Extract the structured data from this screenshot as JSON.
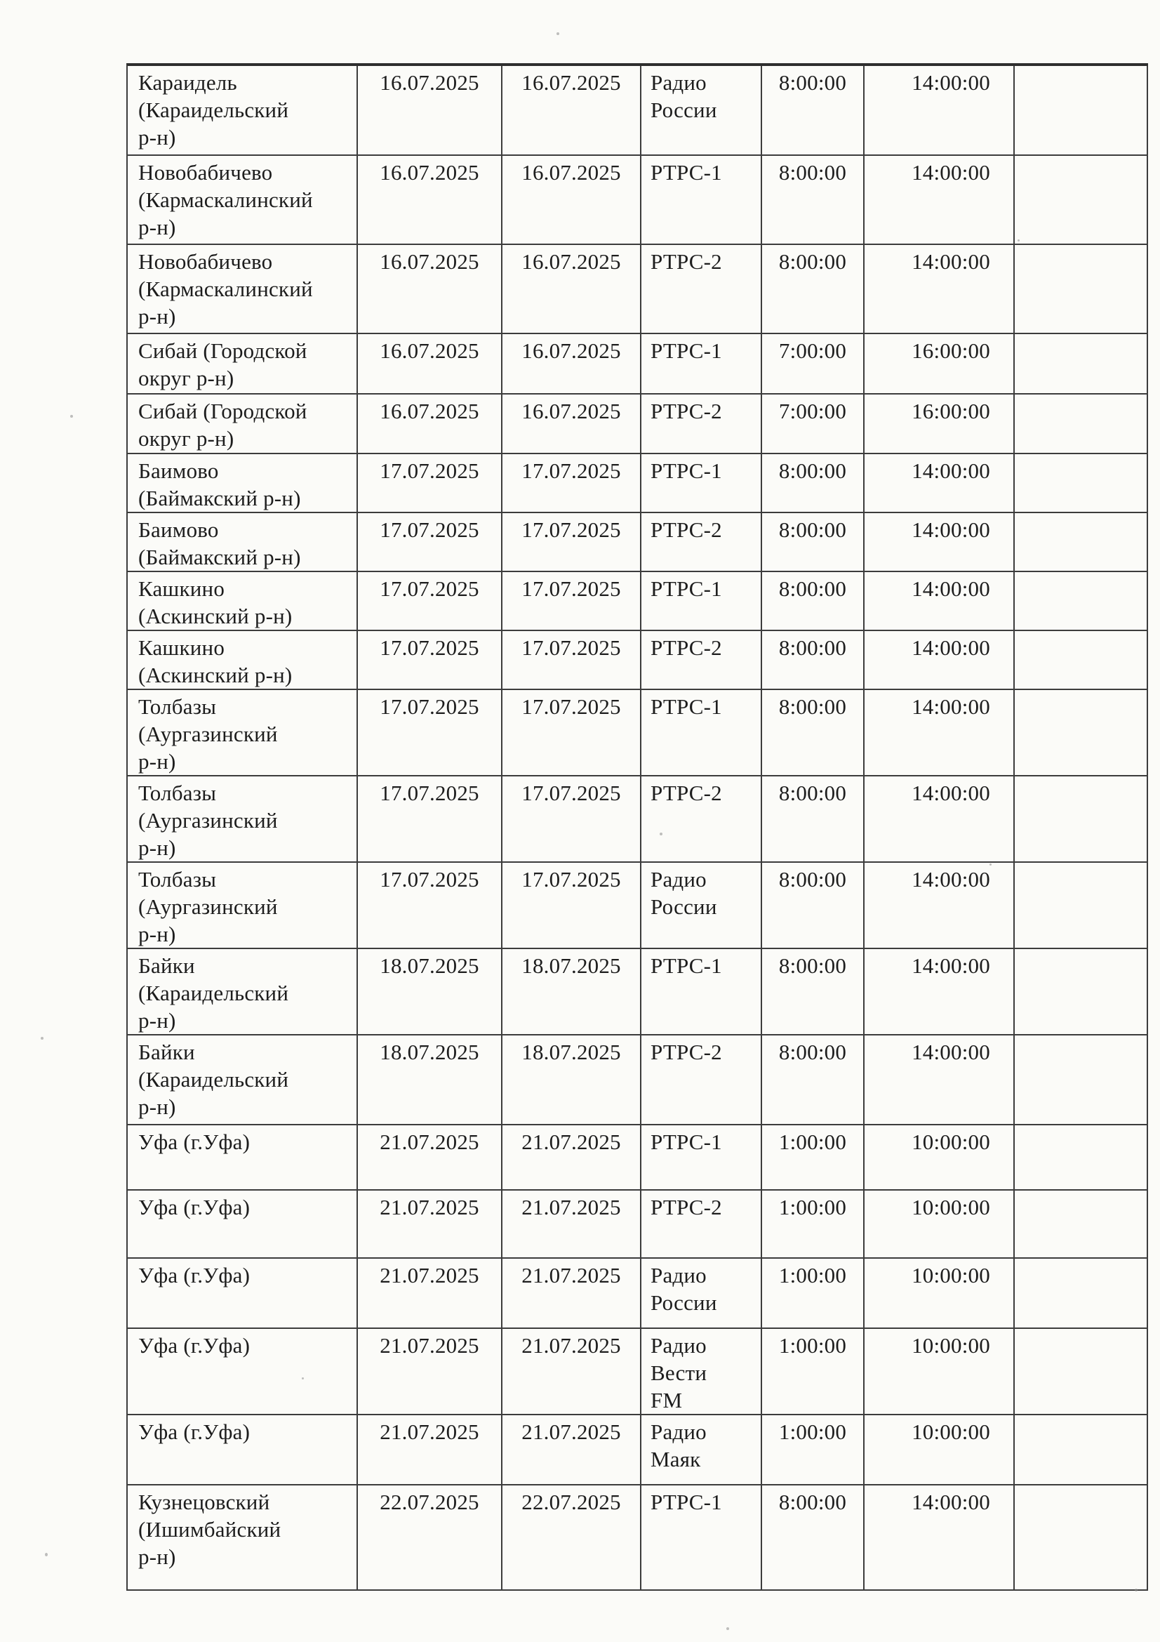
{
  "table": {
    "rows": [
      {
        "location": "Караидель\n(Караидельский\nр-н)",
        "date_from": "16.07.2025",
        "date_to": "16.07.2025",
        "channel": "Радио\nРоссии",
        "start_time": "8:00:00",
        "end_time": "14:00:00",
        "note": ""
      },
      {
        "location": "Новобабичево\n(Кармаскалинский\nр-н)",
        "date_from": "16.07.2025",
        "date_to": "16.07.2025",
        "channel": "РТРС-1",
        "start_time": "8:00:00",
        "end_time": "14:00:00",
        "note": ""
      },
      {
        "location": "Новобабичево\n(Кармаскалинский\nр-н)",
        "date_from": "16.07.2025",
        "date_to": "16.07.2025",
        "channel": "РТРС-2",
        "start_time": "8:00:00",
        "end_time": "14:00:00",
        "note": ""
      },
      {
        "location": "Сибай  (Городской\nокруг р-н)",
        "date_from": "16.07.2025",
        "date_to": "16.07.2025",
        "channel": "РТРС-1",
        "start_time": "7:00:00",
        "end_time": "16:00:00",
        "note": ""
      },
      {
        "location": "Сибай  (Городской\nокруг р-н)",
        "date_from": "16.07.2025",
        "date_to": "16.07.2025",
        "channel": "РТРС-2",
        "start_time": "7:00:00",
        "end_time": "16:00:00",
        "note": ""
      },
      {
        "location": "Баимово\n(Баймакский р-н)",
        "date_from": "17.07.2025",
        "date_to": "17.07.2025",
        "channel": "РТРС-1",
        "start_time": "8:00:00",
        "end_time": "14:00:00",
        "note": ""
      },
      {
        "location": "Баимово\n(Баймакский р-н)",
        "date_from": "17.07.2025",
        "date_to": "17.07.2025",
        "channel": "РТРС-2",
        "start_time": "8:00:00",
        "end_time": "14:00:00",
        "note": ""
      },
      {
        "location": "Кашкино\n(Аскинский р-н)",
        "date_from": "17.07.2025",
        "date_to": "17.07.2025",
        "channel": "РТРС-1",
        "start_time": "8:00:00",
        "end_time": "14:00:00",
        "note": ""
      },
      {
        "location": "Кашкино\n(Аскинский р-н)",
        "date_from": "17.07.2025",
        "date_to": "17.07.2025",
        "channel": "РТРС-2",
        "start_time": "8:00:00",
        "end_time": "14:00:00",
        "note": ""
      },
      {
        "location": "Толбазы\n(Аургазинский\nр-н)",
        "date_from": "17.07.2025",
        "date_to": "17.07.2025",
        "channel": "РТРС-1",
        "start_time": "8:00:00",
        "end_time": "14:00:00",
        "note": ""
      },
      {
        "location": "Толбазы\n(Аургазинский\nр-н)",
        "date_from": "17.07.2025",
        "date_to": "17.07.2025",
        "channel": "РТРС-2",
        "start_time": "8:00:00",
        "end_time": "14:00:00",
        "note": ""
      },
      {
        "location": "Толбазы\n(Аургазинский\nр-н)",
        "date_from": "17.07.2025",
        "date_to": "17.07.2025",
        "channel": "Радио\nРоссии",
        "start_time": "8:00:00",
        "end_time": "14:00:00",
        "note": ""
      },
      {
        "location": "Байки\n(Караидельский\nр-н)",
        "date_from": "18.07.2025",
        "date_to": "18.07.2025",
        "channel": "РТРС-1",
        "start_time": "8:00:00",
        "end_time": "14:00:00",
        "note": ""
      },
      {
        "location": "Байки\n(Караидельский\nр-н)",
        "date_from": "18.07.2025",
        "date_to": "18.07.2025",
        "channel": "РТРС-2",
        "start_time": "8:00:00",
        "end_time": "14:00:00",
        "note": ""
      },
      {
        "location": "Уфа (г.Уфа)",
        "date_from": "21.07.2025",
        "date_to": "21.07.2025",
        "channel": "РТРС-1",
        "start_time": "1:00:00",
        "end_time": "10:00:00",
        "note": ""
      },
      {
        "location": "Уфа (г.Уфа)",
        "date_from": "21.07.2025",
        "date_to": "21.07.2025",
        "channel": "РТРС-2",
        "start_time": "1:00:00",
        "end_time": "10:00:00",
        "note": ""
      },
      {
        "location": "Уфа (г.Уфа)",
        "date_from": "21.07.2025",
        "date_to": "21.07.2025",
        "channel": "Радио\nРоссии",
        "start_time": "1:00:00",
        "end_time": "10:00:00",
        "note": ""
      },
      {
        "location": "Уфа (г.Уфа)",
        "date_from": "21.07.2025",
        "date_to": "21.07.2025",
        "channel": "Радио\nВести\nFM",
        "start_time": "1:00:00",
        "end_time": "10:00:00",
        "note": ""
      },
      {
        "location": "Уфа (г.Уфа)",
        "date_from": "21.07.2025",
        "date_to": "21.07.2025",
        "channel": "Радио\nМаяк",
        "start_time": "1:00:00",
        "end_time": "10:00:00",
        "note": ""
      },
      {
        "location": "Кузнецовский\n(Ишимбайский\nр-н)",
        "date_from": "22.07.2025",
        "date_to": "22.07.2025",
        "channel": "РТРС-1",
        "start_time": "8:00:00",
        "end_time": "14:00:00",
        "note": ""
      }
    ]
  }
}
